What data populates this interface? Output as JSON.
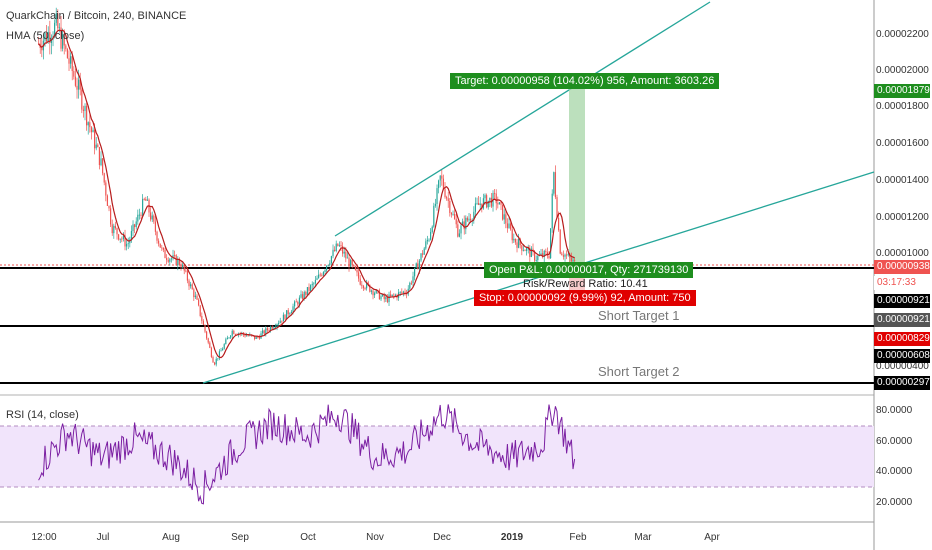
{
  "header": {
    "symbol_line": "QuarkChain / Bitcoin, 240, BINANCE",
    "indicator_line": "HMA (50, close)"
  },
  "rsi_pane": {
    "title": "RSI (14, close)"
  },
  "price_axis": [
    "0.00002200",
    "0.00002000",
    "0.00001800",
    "0.00001600",
    "0.00001400",
    "0.00001200",
    "0.00001000",
    "0.00000400"
  ],
  "rsi_axis": [
    "80.0000",
    "60.0000",
    "40.0000",
    "20.0000"
  ],
  "x_axis": [
    "12:00",
    "Jul",
    "Aug",
    "Sep",
    "Oct",
    "Nov",
    "Dec",
    "2019",
    "Feb",
    "Mar",
    "Apr"
  ],
  "price_tags": {
    "target": "0.00001879",
    "current": "0.00000938",
    "countdown": "03:17:33",
    "entry": "0.00000921",
    "entry2": "0.00000921",
    "stop": "0.00000829",
    "short1": "0.00000608",
    "short2": "0.00000297"
  },
  "position": {
    "target_text": "Target: 0.00000958 (104.02%) 956, Amount: 3603.26",
    "open_pl_text": "Open P&L: 0.00000017, Qty: 271739130",
    "risk_reward_text": "Risk/Reward Ratio: 10.41",
    "stop_text": "Stop: 0.00000092 (9.99%) 92, Amount: 750"
  },
  "annotations": {
    "short_target_1": "Short Target 1",
    "short_target_2": "Short Target 2"
  },
  "colors": {
    "up": "#26a69a",
    "down": "#ef5350",
    "hma": "#b71c1c",
    "trend": "#26a69a",
    "target_green": "#1e8e1e",
    "stop_red": "#e00000",
    "rsi_line": "#7b1fa2",
    "rsi_band": "#f1e4fb"
  },
  "chart_data": {
    "type": "candlestick",
    "title": "QuarkChain / Bitcoin, 240, BINANCE",
    "x_range": [
      "Jun 2018",
      "Apr 2019"
    ],
    "ylim": [
      2.8e-06,
      2.35e-05
    ],
    "price_path": [
      [
        "2018-06-02",
        2.15e-05
      ],
      [
        "2018-06-10",
        2.25e-05
      ],
      [
        "2018-06-20",
        1.9e-05
      ],
      [
        "2018-06-30",
        1.5e-05
      ],
      [
        "2018-07-05",
        1.15e-05
      ],
      [
        "2018-07-12",
        1.05e-05
      ],
      [
        "2018-07-20",
        1.3e-05
      ],
      [
        "2018-07-28",
        1e-05
      ],
      [
        "2018-08-05",
        9.5e-06
      ],
      [
        "2018-08-12",
        7.5e-06
      ],
      [
        "2018-08-20",
        4e-06
      ],
      [
        "2018-08-28",
        5.8e-06
      ],
      [
        "2018-09-08",
        5.4e-06
      ],
      [
        "2018-09-20",
        6.5e-06
      ],
      [
        "2018-10-05",
        8.5e-06
      ],
      [
        "2018-10-15",
        1.05e-05
      ],
      [
        "2018-10-25",
        8.5e-06
      ],
      [
        "2018-11-05",
        7.5e-06
      ],
      [
        "2018-11-15",
        8e-06
      ],
      [
        "2018-11-25",
        1.1e-05
      ],
      [
        "2018-11-30",
        1.42e-05
      ],
      [
        "2018-12-08",
        1.12e-05
      ],
      [
        "2018-12-18",
        1.28e-05
      ],
      [
        "2018-12-25",
        1.3e-05
      ],
      [
        "2019-01-02",
        1.08e-05
      ],
      [
        "2019-01-12",
        9.8e-06
      ],
      [
        "2019-01-18",
        1e-05
      ],
      [
        "2019-01-20",
        1.45e-05
      ],
      [
        "2019-01-23",
        1.02e-05
      ],
      [
        "2019-01-30",
        9.4e-06
      ]
    ],
    "rsi": {
      "name": "RSI (14, close)",
      "overbought": 70,
      "oversold": 30,
      "ylim": [
        10,
        90
      ],
      "path": [
        [
          "2018-06-02",
          40
        ],
        [
          "2018-06-15",
          62
        ],
        [
          "2018-07-01",
          45
        ],
        [
          "2018-07-15",
          58
        ],
        [
          "2018-08-01",
          45
        ],
        [
          "2018-08-15",
          25
        ],
        [
          "2018-09-01",
          55
        ],
        [
          "2018-09-15",
          68
        ],
        [
          "2018-10-01",
          60
        ],
        [
          "2018-10-15",
          75
        ],
        [
          "2018-11-01",
          45
        ],
        [
          "2018-11-15",
          50
        ],
        [
          "2018-12-01",
          75
        ],
        [
          "2018-12-15",
          55
        ],
        [
          "2019-01-01",
          45
        ],
        [
          "2019-01-15",
          55
        ],
        [
          "2019-01-20",
          80
        ],
        [
          "2019-01-30",
          40
        ]
      ]
    }
  }
}
